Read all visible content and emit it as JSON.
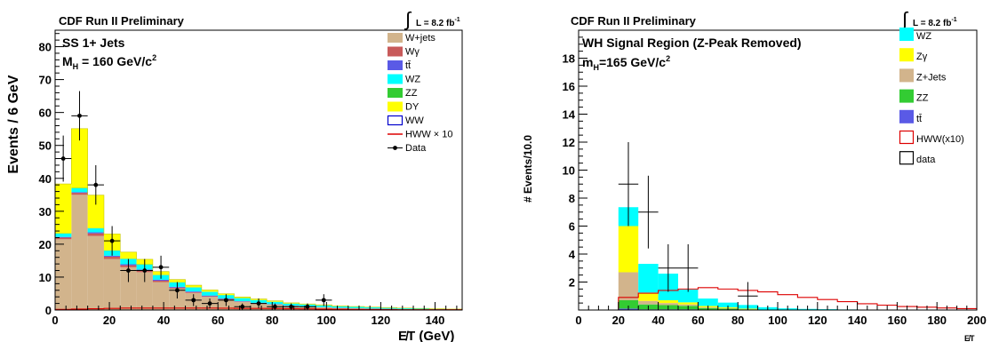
{
  "chart_data": [
    {
      "type": "bar",
      "header": "CDF Run II Preliminary",
      "lumi": "L = 8.2 fb",
      "lumi_sup": "-1",
      "title": "SS 1+ Jets",
      "subtitle_main": "M",
      "subtitle_sub": "H",
      "subtitle_rest": " = 160 GeV/c",
      "subtitle_sup": "2",
      "xlabel": "E̸T (GeV)",
      "ylabel": "Events / 6 GeV",
      "xlim": [
        0,
        150
      ],
      "ylim": [
        0,
        85
      ],
      "x_ticks": [
        "0",
        "20",
        "40",
        "60",
        "80",
        "100",
        "120",
        "140"
      ],
      "y_ticks": [
        "0",
        "10",
        "20",
        "30",
        "40",
        "50",
        "60",
        "70",
        "80"
      ],
      "bin_edges": [
        0,
        6,
        12,
        18,
        24,
        30,
        36,
        42,
        48,
        54,
        60,
        66,
        72,
        78,
        84,
        90,
        96,
        102,
        108,
        114,
        120,
        126,
        132,
        138,
        144,
        150
      ],
      "stack": [
        {
          "name": "W+jets",
          "color": "#d2b48c",
          "values": [
            21.5,
            35,
            22.5,
            15.5,
            13,
            11.5,
            8.5,
            6.5,
            5.2,
            4,
            3.2,
            2.5,
            2,
            1.6,
            1.2,
            1,
            0.8,
            0.6,
            0.5,
            0.4,
            0.3,
            0.25,
            0.2,
            0.15,
            0.1
          ]
        },
        {
          "name": "Wγ",
          "color": "#c85a5a",
          "values": [
            0.5,
            0.6,
            0.8,
            0.7,
            0.6,
            0.5,
            0.4,
            0.3,
            0.25,
            0.2,
            0.15,
            0.1,
            0.1,
            0.1,
            0.08,
            0.06,
            0.05,
            0.04,
            0.03,
            0.03,
            0.02,
            0.02,
            0.01,
            0.01,
            0.01
          ]
        },
        {
          "name": "tt̄",
          "color": "#5a5ae6",
          "values": [
            0.2,
            0.2,
            0.3,
            0.3,
            0.3,
            0.3,
            0.3,
            0.25,
            0.2,
            0.2,
            0.15,
            0.1,
            0.1,
            0.08,
            0.06,
            0.05,
            0.04,
            0.03,
            0.02,
            0.02,
            0.02,
            0.01,
            0.01,
            0.01,
            0.01
          ]
        },
        {
          "name": "WZ",
          "color": "#00ffff",
          "values": [
            1,
            1.2,
            1.2,
            1.5,
            1.6,
            1.5,
            1.4,
            1.3,
            1.2,
            1.1,
            1,
            0.9,
            0.8,
            0.7,
            0.6,
            0.55,
            0.5,
            0.45,
            0.4,
            0.35,
            0.3,
            0.25,
            0.2,
            0.15,
            0.1
          ]
        },
        {
          "name": "ZZ",
          "color": "#33cc33",
          "values": [
            0.1,
            0.1,
            0.1,
            0.1,
            0.1,
            0.1,
            0.1,
            0.1,
            0.08,
            0.08,
            0.06,
            0.05,
            0.05,
            0.04,
            0.03,
            0.03,
            0.02,
            0.02,
            0.02,
            0.01,
            0.01,
            0.01,
            0.01,
            0.01,
            0.01
          ]
        },
        {
          "name": "DY",
          "color": "#ffff00",
          "values": [
            15,
            18,
            10,
            5,
            2,
            1.5,
            1,
            0.8,
            0.6,
            0.5,
            0.4,
            0.3,
            0.3,
            0.25,
            0.2,
            0.15,
            0.15,
            0.1,
            0.1,
            0.1,
            0.1,
            0.05,
            0.05,
            0.05,
            0.05
          ]
        }
      ],
      "legend": [
        {
          "label": "W+jets",
          "style": "fill",
          "color": "#d2b48c"
        },
        {
          "label": "Wγ",
          "style": "fill",
          "color": "#c85a5a"
        },
        {
          "label": "tt̄",
          "style": "fill",
          "color": "#5a5ae6"
        },
        {
          "label": "WZ",
          "style": "fill",
          "color": "#00ffff"
        },
        {
          "label": "ZZ",
          "style": "fill",
          "color": "#33cc33"
        },
        {
          "label": "DY",
          "style": "fill",
          "color": "#ffff00"
        },
        {
          "label": "WW",
          "style": "box",
          "color": "#0000cc"
        },
        {
          "label": "HWW × 10",
          "style": "line",
          "color": "#dd0000"
        },
        {
          "label": "Data",
          "style": "point",
          "color": "#000000"
        }
      ],
      "signal": {
        "name": "HWW × 10",
        "color": "#dd0000",
        "values": [
          0.2,
          0.3,
          0.4,
          0.5,
          0.6,
          0.6,
          0.6,
          0.6,
          0.6,
          0.6,
          0.55,
          0.5,
          0.5,
          0.45,
          0.4,
          0.35,
          0.3,
          0.25,
          0.2,
          0.2,
          0.15,
          0.1,
          0.1,
          0.1,
          0.1
        ]
      },
      "data": [
        {
          "x": 3,
          "y": 46,
          "err": 7
        },
        {
          "x": 9,
          "y": 59,
          "err": 7.5
        },
        {
          "x": 15,
          "y": 38,
          "err": 6
        },
        {
          "x": 21,
          "y": 21,
          "err": 4.5
        },
        {
          "x": 27,
          "y": 12,
          "err": 3.5
        },
        {
          "x": 33,
          "y": 12,
          "err": 3.5
        },
        {
          "x": 39,
          "y": 13,
          "err": 3.5
        },
        {
          "x": 45,
          "y": 6,
          "err": 2.5
        },
        {
          "x": 51,
          "y": 3,
          "err": 1.8
        },
        {
          "x": 57,
          "y": 2,
          "err": 1.5
        },
        {
          "x": 63,
          "y": 3,
          "err": 1.8
        },
        {
          "x": 69,
          "y": 1,
          "err": 1
        },
        {
          "x": 75,
          "y": 2,
          "err": 1.5
        },
        {
          "x": 81,
          "y": 1,
          "err": 1
        },
        {
          "x": 87,
          "y": 1,
          "err": 1
        },
        {
          "x": 93,
          "y": 1,
          "err": 1
        },
        {
          "x": 99,
          "y": 3,
          "err": 1.8
        }
      ]
    },
    {
      "type": "bar",
      "header": "CDF Run II Preliminary",
      "lumi": "L = 8.2 fb",
      "lumi_sup": "-1",
      "title": "WH Signal Region (Z-Peak Removed)",
      "subtitle_main": "m",
      "subtitle_sub": "H",
      "subtitle_rest": "=165 GeV/c",
      "subtitle_sup": "2",
      "xlabel": "E̸T",
      "ylabel": "# Events/10.0",
      "xlim": [
        0,
        200
      ],
      "ylim": [
        0,
        20
      ],
      "x_ticks": [
        "0",
        "20",
        "40",
        "60",
        "80",
        "100",
        "120",
        "140",
        "160",
        "180",
        "200"
      ],
      "y_ticks": [
        "2",
        "4",
        "6",
        "8",
        "10",
        "12",
        "14",
        "16",
        "18"
      ],
      "bin_edges": [
        20,
        30,
        40,
        50,
        60,
        70,
        80,
        90,
        100,
        110,
        120,
        130,
        140,
        150,
        160,
        170,
        180,
        190,
        200
      ],
      "stack": [
        {
          "name": "tt̄",
          "color": "#5a5ae6",
          "values": [
            0.1,
            0.05,
            0.05,
            0.05,
            0.02,
            0.02,
            0,
            0,
            0,
            0,
            0,
            0,
            0,
            0,
            0,
            0,
            0,
            0
          ]
        },
        {
          "name": "ZZ",
          "color": "#33cc33",
          "values": [
            0.6,
            0.35,
            0.3,
            0.25,
            0.12,
            0.08,
            0.05,
            0.03,
            0.02,
            0,
            0,
            0,
            0,
            0,
            0,
            0,
            0,
            0
          ]
        },
        {
          "name": "Z+Jets",
          "color": "#d2b48c",
          "values": [
            2.0,
            0.25,
            0.15,
            0.1,
            0.05,
            0.03,
            0,
            0,
            0,
            0,
            0,
            0,
            0,
            0,
            0,
            0,
            0,
            0
          ]
        },
        {
          "name": "Zγ",
          "color": "#ffff00",
          "values": [
            3.3,
            0.6,
            0.2,
            0.15,
            0.1,
            0.07,
            0.05,
            0,
            0,
            0,
            0,
            0,
            0,
            0,
            0,
            0,
            0,
            0
          ]
        },
        {
          "name": "WZ",
          "color": "#00ffff",
          "values": [
            1.35,
            2.05,
            1.9,
            0.9,
            0.53,
            0.33,
            0.26,
            0.17,
            0.1,
            0.08,
            0.06,
            0.04,
            0.03,
            0.02,
            0.01,
            0.01,
            0,
            0
          ]
        }
      ],
      "legend": [
        {
          "label": "WZ",
          "style": "fill",
          "color": "#00ffff"
        },
        {
          "label": "Zγ",
          "style": "fill",
          "color": "#ffff00"
        },
        {
          "label": "Z+Jets",
          "style": "fill",
          "color": "#d2b48c"
        },
        {
          "label": "ZZ",
          "style": "fill",
          "color": "#33cc33"
        },
        {
          "label": "tt̄",
          "style": "fill",
          "color": "#5a5ae6"
        },
        {
          "label": "HWW(x10)",
          "style": "box",
          "color": "#dd0000"
        },
        {
          "label": "data",
          "style": "box",
          "color": "#000000"
        }
      ],
      "signal": {
        "name": "HWW(x10)",
        "color": "#dd0000",
        "values": [
          0.9,
          1.2,
          1.4,
          1.5,
          1.6,
          1.5,
          1.4,
          1.3,
          1.1,
          0.9,
          0.75,
          0.6,
          0.45,
          0.35,
          0.25,
          0.2,
          0.15,
          0.1
        ]
      },
      "data": [
        {
          "x": 25,
          "y": 9,
          "err": 3
        },
        {
          "x": 35,
          "y": 7,
          "err": 2.6
        },
        {
          "x": 45,
          "y": 3,
          "err": 1.7
        },
        {
          "x": 55,
          "y": 3,
          "err": 1.7
        },
        {
          "x": 85,
          "y": 1,
          "err": 1
        }
      ]
    }
  ]
}
